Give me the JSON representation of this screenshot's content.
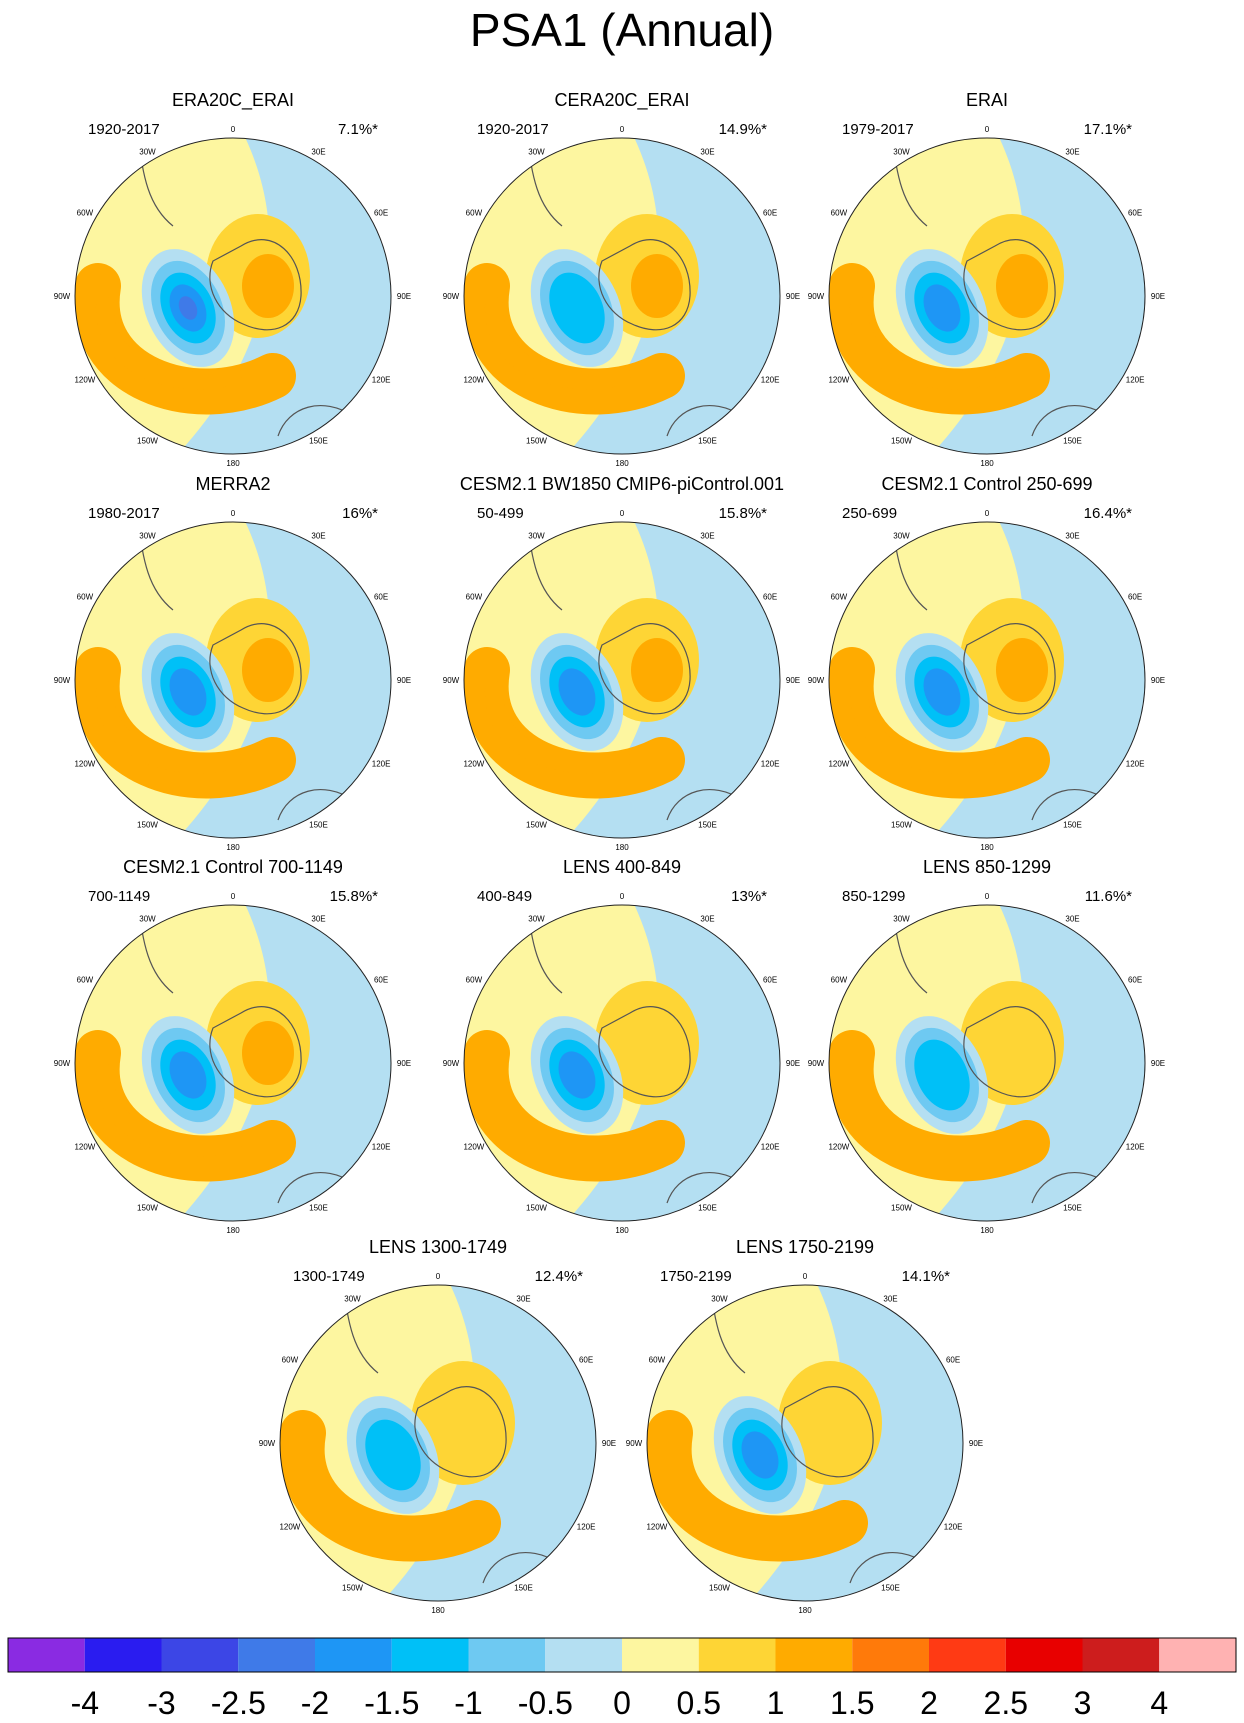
{
  "title": "PSA1 (Annual)",
  "colors": {
    "n4": "#8a2be2",
    "n3": "#2a1cf0",
    "n25": "#3c46e6",
    "n2": "#3f7ae8",
    "n15": "#1e96f5",
    "n1": "#00c0f7",
    "n05": "#6ec9f2",
    "n0": "#b4dff2",
    "p0": "#fdf6a0",
    "p05": "#fed535",
    "p1": "#ffab00",
    "p15": "#ff7a0a",
    "p2": "#ff3a14",
    "p25": "#e80000",
    "p3": "#cd1d1d",
    "p4": "#ffb2b2",
    "coast": "#555555",
    "rim": "#222222"
  },
  "longitude_labels": [
    "0",
    "30E",
    "60E",
    "90E",
    "120E",
    "150E",
    "180",
    "150W",
    "120W",
    "90W",
    "60W",
    "30W"
  ],
  "chart_data": {
    "type": "heatmap",
    "title": "PSA1 (Annual)",
    "panels": [
      {
        "name": "ERA20C_ERAI",
        "period": "1920-2017",
        "variance": "7.1%*",
        "min_value": -2.5,
        "max_value": 1.5
      },
      {
        "name": "CERA20C_ERAI",
        "period": "1920-2017",
        "variance": "14.9%*",
        "min_value": -1.5,
        "max_value": 2
      },
      {
        "name": "ERAI",
        "period": "1979-2017",
        "variance": "17.1%*",
        "min_value": -2,
        "max_value": 1.5
      },
      {
        "name": "MERRA2",
        "period": "1980-2017",
        "variance": "16%*",
        "min_value": -2,
        "max_value": 1.5
      },
      {
        "name": "CESM2.1 BW1850 CMIP6-piControl.001",
        "period": "50-499",
        "variance": "15.8%*",
        "min_value": -2,
        "max_value": 1.5
      },
      {
        "name": "CESM2.1 Control 250-699",
        "period": "250-699",
        "variance": "16.4%*",
        "min_value": -2,
        "max_value": 1.5
      },
      {
        "name": "CESM2.1 Control 700-1149",
        "period": "700-1149",
        "variance": "15.8%*",
        "min_value": -2,
        "max_value": 1.5
      },
      {
        "name": "LENS 400-849",
        "period": "400-849",
        "variance": "13%*",
        "min_value": -2,
        "max_value": 1
      },
      {
        "name": "LENS 850-1299",
        "period": "850-1299",
        "variance": "11.6%*",
        "min_value": -1.5,
        "max_value": 1
      },
      {
        "name": "LENS 1300-1749",
        "period": "1300-1749",
        "variance": "12.4%*",
        "min_value": -1.5,
        "max_value": 1
      },
      {
        "name": "LENS 1750-2199",
        "period": "1750-2199",
        "variance": "14.1%*",
        "min_value": -2,
        "max_value": 1
      }
    ],
    "colorbar": {
      "levels": [
        -4,
        -3,
        -2.5,
        -2,
        -1.5,
        -1,
        -0.5,
        0,
        0.5,
        1,
        1.5,
        2,
        2.5,
        3,
        4
      ],
      "labels": [
        "-4",
        "-3",
        "-2.5",
        "-2",
        "-1.5",
        "-1",
        "-0.5",
        "0",
        "0.5",
        "1",
        "1.5",
        "2",
        "2.5",
        "3",
        "4"
      ],
      "colors": [
        "#8a2be2",
        "#2a1cf0",
        "#3c46e6",
        "#3f7ae8",
        "#1e96f5",
        "#00c0f7",
        "#6ec9f2",
        "#b4dff2",
        "#fdf6a0",
        "#fed535",
        "#ffab00",
        "#ff7a0a",
        "#ff3a14",
        "#e80000",
        "#cd1d1d",
        "#ffb2b2"
      ]
    }
  }
}
